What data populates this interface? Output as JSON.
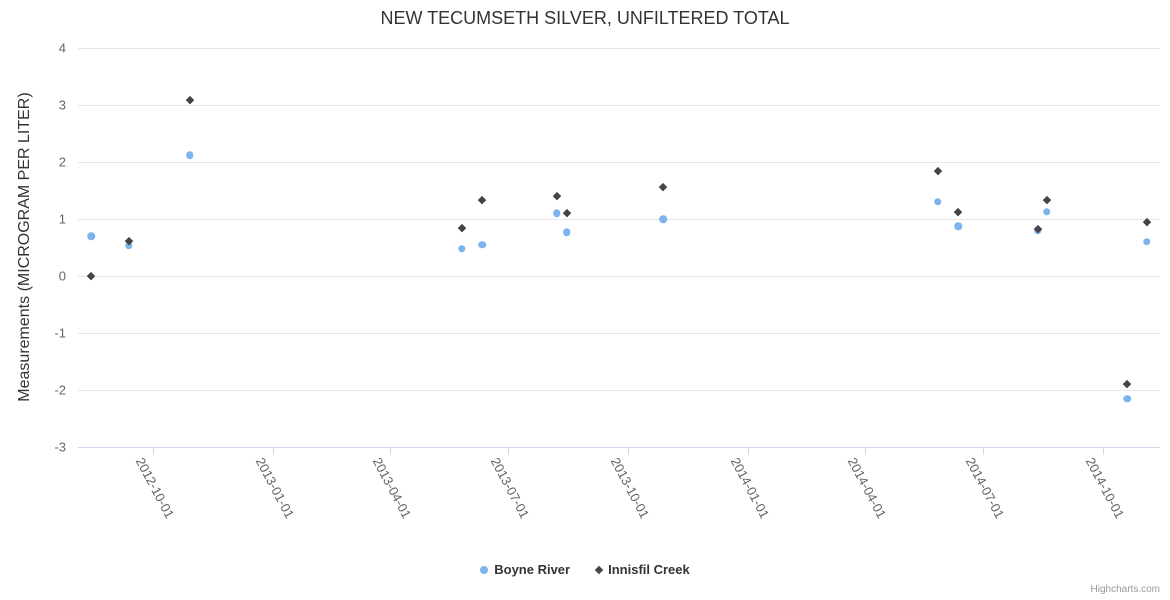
{
  "chart": {
    "credits": "Highcharts.com"
  },
  "chart_data": {
    "type": "scatter",
    "title": "NEW TECUMSETH SILVER, UNFILTERED TOTAL",
    "xlabel": "",
    "ylabel": "Measurements (MICROGRAM PER LITER)",
    "ylim": [
      -3,
      4
    ],
    "y_tick_step": 1,
    "grid": "horizontal",
    "legend_position": "bottom-center",
    "x_domain": [
      "2012-08-04",
      "2014-11-14"
    ],
    "x_ticks": [
      "2012-10-01",
      "2013-01-01",
      "2013-04-01",
      "2013-07-01",
      "2013-10-01",
      "2014-01-01",
      "2014-04-01",
      "2014-07-01",
      "2014-10-01"
    ],
    "series": [
      {
        "name": "Boyne River",
        "color": "#7cb5ec",
        "marker": "circle",
        "points": [
          [
            "2012-08-14",
            0.7
          ],
          [
            "2012-09-12",
            0.53
          ],
          [
            "2012-10-29",
            2.12
          ],
          [
            "2013-05-26",
            0.48
          ],
          [
            "2013-06-11",
            0.55
          ],
          [
            "2013-08-07",
            1.1
          ],
          [
            "2013-08-15",
            0.77
          ],
          [
            "2013-10-28",
            1.0
          ],
          [
            "2014-05-27",
            1.3
          ],
          [
            "2014-06-12",
            0.87
          ],
          [
            "2014-08-12",
            0.8
          ],
          [
            "2014-08-19",
            1.13
          ],
          [
            "2014-10-20",
            -2.15
          ],
          [
            "2014-11-04",
            0.6
          ]
        ]
      },
      {
        "name": "Innisfil Creek",
        "color": "#434348",
        "marker": "diamond",
        "points": [
          [
            "2012-08-14",
            0.0
          ],
          [
            "2012-09-12",
            0.62
          ],
          [
            "2012-10-29",
            3.08
          ],
          [
            "2013-05-26",
            0.85
          ],
          [
            "2013-06-11",
            1.34
          ],
          [
            "2013-08-07",
            1.41
          ],
          [
            "2013-08-15",
            1.1
          ],
          [
            "2013-10-28",
            1.57
          ],
          [
            "2014-05-27",
            1.84
          ],
          [
            "2014-06-12",
            1.12
          ],
          [
            "2014-08-12",
            0.82
          ],
          [
            "2014-08-19",
            1.34
          ],
          [
            "2014-10-20",
            -1.9
          ],
          [
            "2014-11-04",
            0.94
          ]
        ]
      }
    ]
  }
}
